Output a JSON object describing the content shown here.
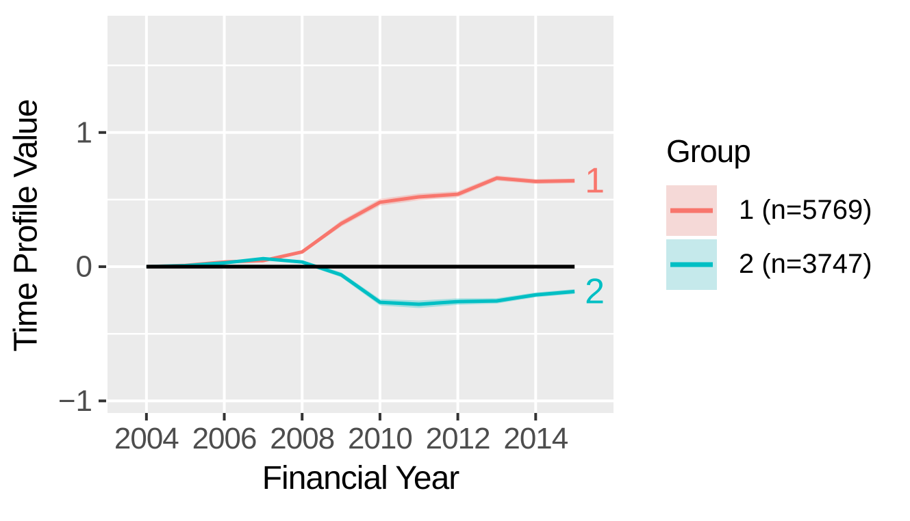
{
  "figure": {
    "background_color": "#FFFFFF",
    "panel_background_color": "#EBEBEB",
    "grid_color": "#FFFFFF",
    "tick_mark_color": "#333333",
    "tick_label_color": "#4D4D4D",
    "axis_title_color": "#000000"
  },
  "chart_data": {
    "type": "line",
    "title": "",
    "xlabel": "Financial Year",
    "ylabel": "Time Profile Value",
    "grid": "on",
    "legend_position": "right",
    "xlim": [
      2003,
      2016
    ],
    "ylim": [
      -1.09,
      1.87
    ],
    "x": [
      2004,
      2005,
      2006,
      2007,
      2008,
      2009,
      2010,
      2011,
      2012,
      2013,
      2014,
      2015
    ],
    "series": [
      {
        "name": "1 (n=5769)",
        "direct_label": "1",
        "color": "#F8766D",
        "ribbon_fill": "#F8766D",
        "values": [
          0.0,
          0.01,
          0.035,
          0.045,
          0.11,
          0.32,
          0.48,
          0.52,
          0.54,
          0.66,
          0.635,
          0.64
        ],
        "ci": [
          0.004,
          0.005,
          0.007,
          0.009,
          0.013,
          0.022,
          0.025,
          0.025,
          0.022,
          0.02,
          0.018,
          0.018
        ]
      },
      {
        "name": "2 (n=3747)",
        "direct_label": "2",
        "color": "#00BFC4",
        "ribbon_fill": "#00BFC4",
        "values": [
          0.0,
          0.008,
          0.028,
          0.06,
          0.035,
          -0.06,
          -0.265,
          -0.28,
          -0.26,
          -0.255,
          -0.21,
          -0.185
        ],
        "ci": [
          0.004,
          0.005,
          0.007,
          0.01,
          0.013,
          0.018,
          0.024,
          0.028,
          0.024,
          0.02,
          0.018,
          0.018
        ]
      }
    ],
    "reference_line": {
      "y": 0,
      "color": "#000000"
    },
    "x_ticks": {
      "values": [
        2004,
        2006,
        2008,
        2010,
        2012,
        2014
      ],
      "labels": [
        "2004",
        "2006",
        "2008",
        "2010",
        "2012",
        "2014"
      ]
    },
    "y_ticks": {
      "values": [
        1,
        0,
        -1
      ],
      "labels": [
        "1",
        "0",
        "−1"
      ]
    },
    "y_minor_gridlines": [
      1.5,
      0.5,
      -0.5
    ]
  },
  "legend": {
    "title": "Group",
    "items": [
      {
        "label": "1 (n=5769)",
        "line_color": "#F8766D",
        "fill_color": "#F5D9D7"
      },
      {
        "label": "2 (n=3747)",
        "line_color": "#00BFC4",
        "fill_color": "#C5E9EB"
      }
    ]
  }
}
